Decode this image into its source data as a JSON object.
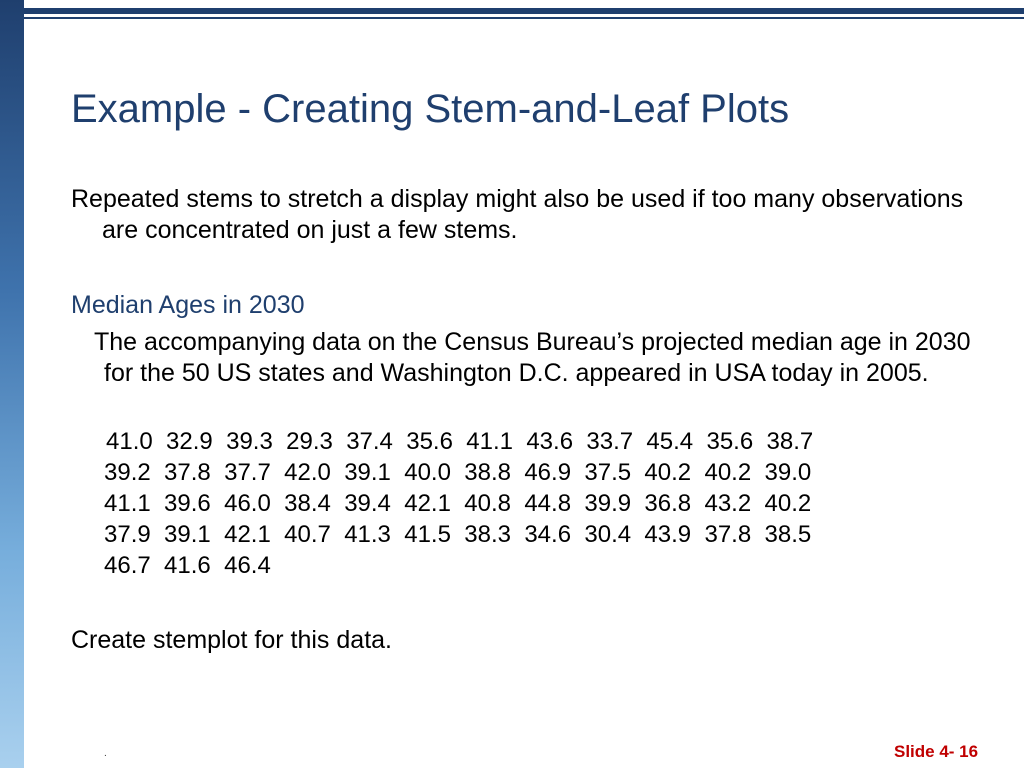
{
  "slide": {
    "title": "Example - Creating Stem-and-Leaf Plots",
    "intro": "Repeated stems to stretch a display might also be used if too many observations are concentrated on just a few stems.",
    "subheading": "Median Ages in 2030",
    "description": "The accompanying data on the Census Bureau’s projected median age in 2030 for the 50 US states and Washington D.C. appeared in USA today in 2005.",
    "data_lines": [
      "41.0  32.9  39.3  29.3  37.4  35.6  41.1  43.6  33.7  45.4  35.6  38.7",
      "39.2  37.8  37.7  42.0  39.1  40.0  38.8  46.9  37.5  40.2  40.2  39.0",
      "41.1  39.6  46.0  38.4  39.4  42.1  40.8  44.8  39.9  36.8  43.2  40.2",
      "37.9  39.1  42.1  40.7  41.3  41.5  38.3  34.6  30.4  43.9  37.8  38.5",
      "46.7  41.6  46.4"
    ],
    "task": "Create stemplot for this data.",
    "footer_dot": ".",
    "slide_number": "Slide 4- 16"
  },
  "colors": {
    "title": "#1f3f6e",
    "subheading": "#1f3f6e",
    "slide_number": "#c00000",
    "sidebar_top": "#1f3f6e",
    "sidebar_bottom": "#a9d0ee"
  }
}
